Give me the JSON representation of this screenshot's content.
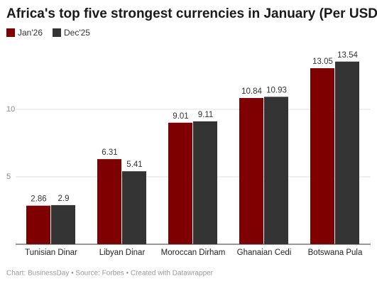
{
  "chart_data": {
    "type": "bar",
    "title": "Africa's top five strongest currencies in January (Per USD)",
    "categories": [
      "Tunisian Dinar",
      "Libyan Dinar",
      "Moroccan Dirham",
      "Ghanaian Cedi",
      "Botswana Pula"
    ],
    "series": [
      {
        "name": "Jan'26",
        "color": "#7f0000",
        "values": [
          2.86,
          6.31,
          9.01,
          10.84,
          13.05
        ]
      },
      {
        "name": "Dec'25",
        "color": "#333333",
        "values": [
          2.9,
          5.41,
          9.11,
          10.93,
          13.54
        ]
      }
    ],
    "ylim": [
      0,
      14
    ],
    "yticks": [
      5,
      10
    ],
    "grid": true,
    "footer": "Chart: BusinessDay • Source: Forbes • Created with Datawrapper"
  }
}
